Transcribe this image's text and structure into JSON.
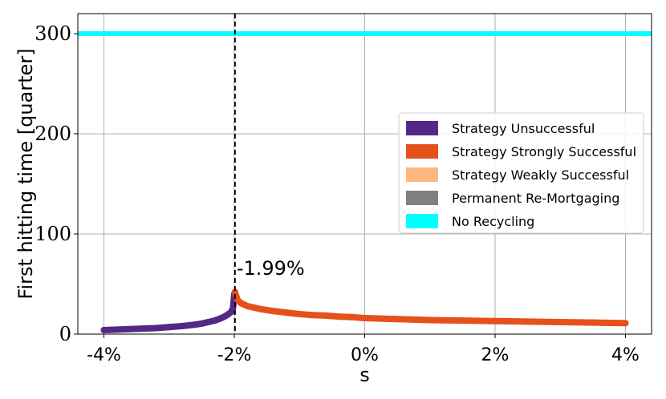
{
  "chart_data": {
    "type": "scatter",
    "title": "",
    "xlabel": "s",
    "ylabel": "First hitting time [quarter]",
    "xlim": [
      -0.044,
      0.044
    ],
    "ylim": [
      0,
      320
    ],
    "grid": true,
    "legend_placement": "center-right",
    "x_ticks": [
      {
        "value": -0.04,
        "label": "-4%"
      },
      {
        "value": -0.02,
        "label": "-2%"
      },
      {
        "value": 0.0,
        "label": "0%"
      },
      {
        "value": 0.02,
        "label": "2%"
      },
      {
        "value": 0.04,
        "label": "4%"
      }
    ],
    "y_ticks": [
      {
        "value": 0,
        "label": "0"
      },
      {
        "value": 100,
        "label": "100"
      },
      {
        "value": 200,
        "label": "200"
      },
      {
        "value": 300,
        "label": "300"
      }
    ],
    "threshold": {
      "x": -0.0199,
      "label": "-1.99%"
    },
    "series": [
      {
        "name": "Strategy Unsuccessful",
        "color": "#542788",
        "x": [
          -0.04,
          -0.038,
          -0.036,
          -0.034,
          -0.032,
          -0.03,
          -0.028,
          -0.026,
          -0.025,
          -0.024,
          -0.023,
          -0.022,
          -0.0215,
          -0.021,
          -0.0205,
          -0.0202,
          -0.02
        ],
        "y": [
          4,
          4.5,
          5,
          5.5,
          6,
          7,
          8,
          9.5,
          10.5,
          12,
          13.5,
          16,
          17.5,
          19.5,
          22,
          26,
          40
        ]
      },
      {
        "name": "Strategy Strongly Successful",
        "color": "#e6501a",
        "x": [
          -0.0199,
          -0.0195,
          -0.019,
          -0.0185,
          -0.018,
          -0.017,
          -0.016,
          -0.015,
          -0.014,
          -0.012,
          -0.01,
          -0.008,
          -0.006,
          -0.004,
          -0.002,
          0.0,
          0.005,
          0.01,
          0.015,
          0.02,
          0.025,
          0.03,
          0.035,
          0.04
        ],
        "y": [
          42,
          34,
          31,
          29.5,
          28,
          26.5,
          25,
          24,
          23,
          21.5,
          20,
          19,
          18.5,
          17.5,
          17,
          16,
          15,
          14,
          13.5,
          13,
          12.5,
          12,
          11.5,
          11
        ]
      },
      {
        "name": "Strategy Weakly Successful",
        "color": "#fdb87d",
        "x": [],
        "y": []
      },
      {
        "name": "Permanent Re-Mortgaging",
        "color": "#808080",
        "x": [],
        "y": []
      },
      {
        "name": "No Recycling",
        "color": "#00ffff",
        "constant_y": 300
      }
    ]
  }
}
